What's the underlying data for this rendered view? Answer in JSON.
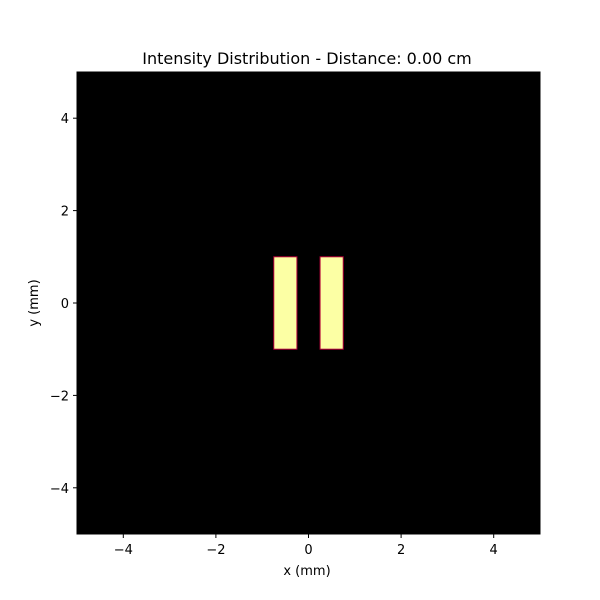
{
  "chart_data": {
    "type": "heatmap",
    "title": "Intensity Distribution - Distance: 0.00 cm",
    "xlabel": "x (mm)",
    "ylabel": "y (mm)",
    "xlim": [
      -5,
      5
    ],
    "ylim": [
      -5,
      5
    ],
    "xticks": [
      -4,
      -2,
      0,
      2,
      4
    ],
    "yticks": [
      -4,
      -2,
      0,
      2,
      4
    ],
    "xtick_labels": [
      "−4",
      "−2",
      "0",
      "2",
      "4"
    ],
    "ytick_labels": [
      "−4",
      "−2",
      "0",
      "2",
      "4"
    ],
    "grid": false,
    "background_color": "#000000",
    "highlight_color": "#fcffa4",
    "edge_color": "#b3003a",
    "bright_regions": [
      {
        "x": [
          -0.75,
          -0.25
        ],
        "y": [
          -1,
          1
        ]
      },
      {
        "x": [
          0.25,
          0.75
        ],
        "y": [
          -1,
          1
        ]
      }
    ]
  }
}
